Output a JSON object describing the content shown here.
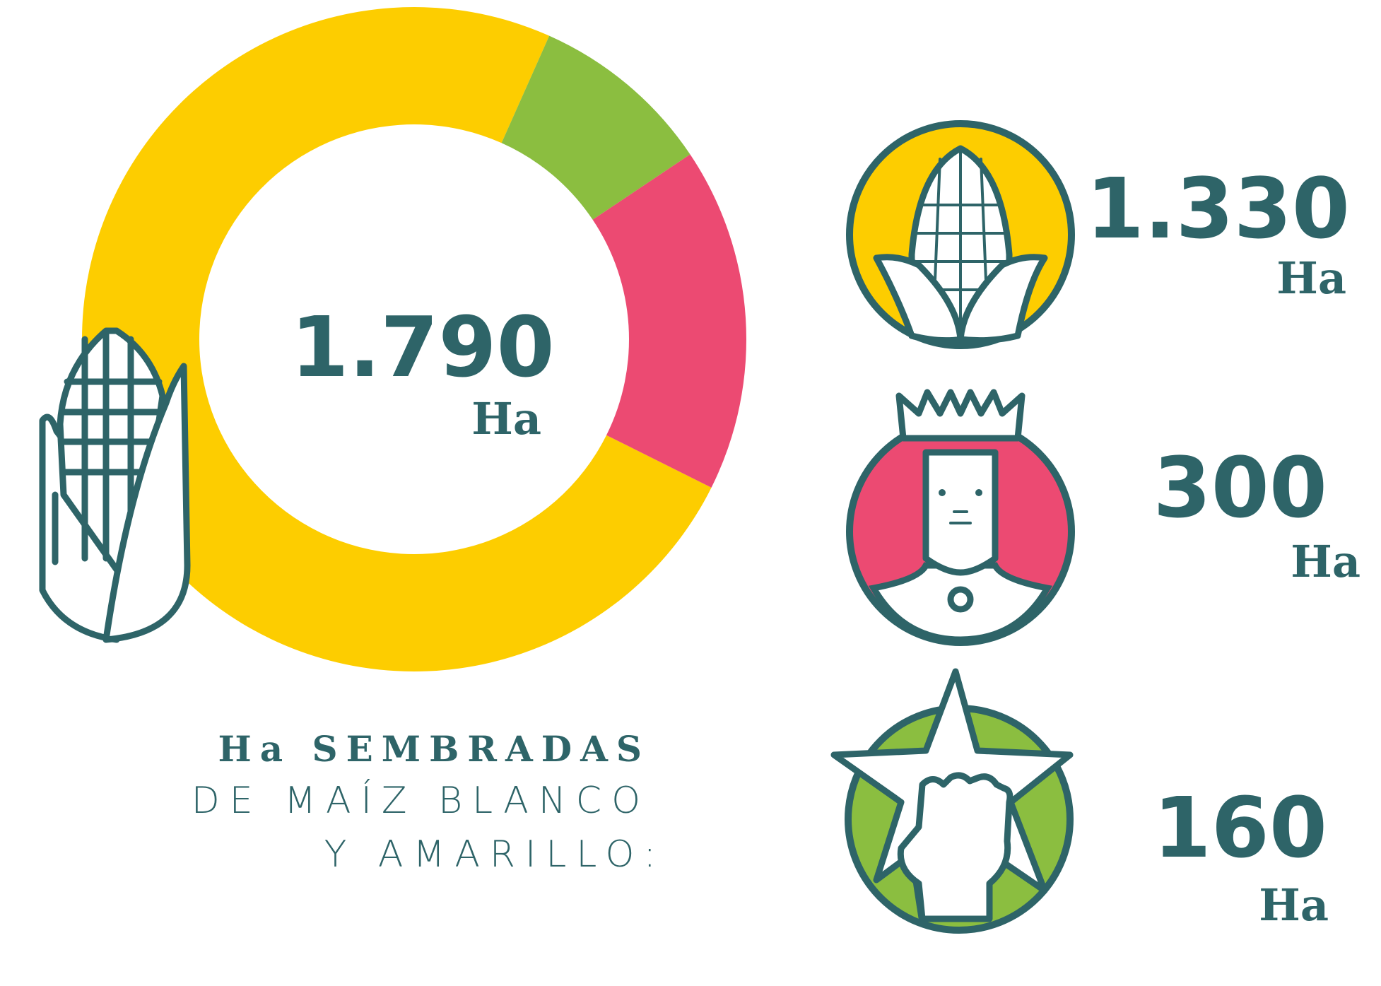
{
  "chart_data": {
    "type": "pie",
    "title": "Ha SEMBRADAS",
    "subtitle": [
      "DE MAÍZ BLANCO",
      "Y AMARILLO:"
    ],
    "total_label": "1.790",
    "unit": "Ha",
    "values": [
      1330,
      300,
      160
    ],
    "value_labels": [
      "1.330",
      "300",
      "160"
    ],
    "colors": [
      "#fdcd00",
      "#ec4a72",
      "#8bbe40"
    ]
  }
}
